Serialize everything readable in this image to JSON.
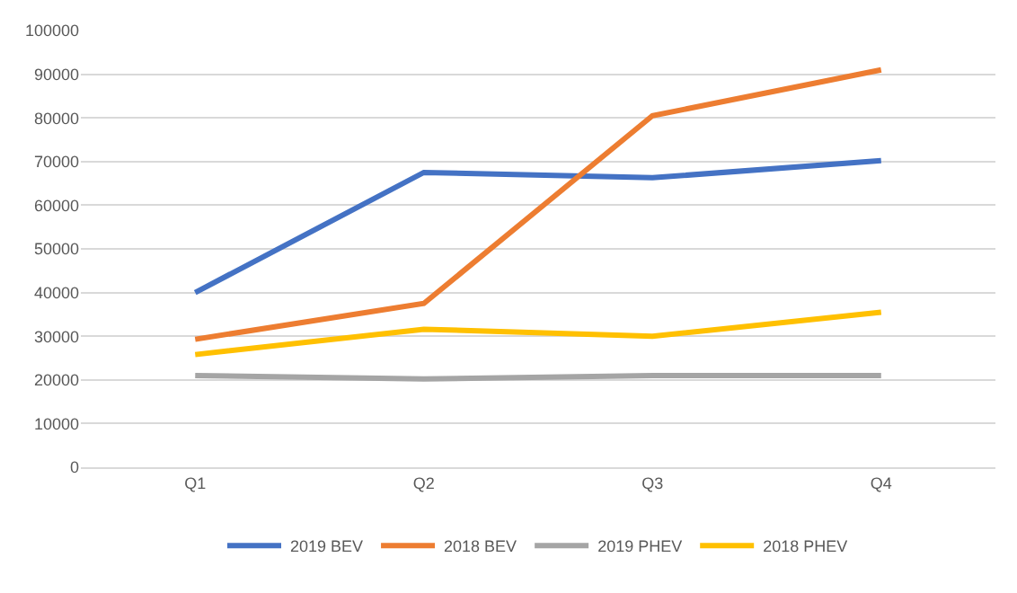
{
  "chart_data": {
    "type": "line",
    "categories": [
      "Q1",
      "Q2",
      "Q3",
      "Q4"
    ],
    "series": [
      {
        "name": "2019 BEV",
        "color": "#4472c4",
        "values": [
          40000,
          67500,
          66300,
          70200
        ]
      },
      {
        "name": "2018 BEV",
        "color": "#ed7d31",
        "values": [
          29300,
          37500,
          80500,
          91000
        ]
      },
      {
        "name": "2019 PHEV",
        "color": "#a5a5a5",
        "values": [
          21000,
          20200,
          21000,
          21000
        ]
      },
      {
        "name": "2018 PHEV",
        "color": "#ffc000",
        "values": [
          25800,
          31600,
          30000,
          35500
        ]
      }
    ],
    "ylim": [
      0,
      100000
    ],
    "yticks": [
      0,
      10000,
      20000,
      30000,
      40000,
      50000,
      60000,
      70000,
      80000,
      90000,
      100000
    ],
    "grid": "y",
    "legend": "bottom",
    "marker": "none",
    "line_style": "solid"
  }
}
